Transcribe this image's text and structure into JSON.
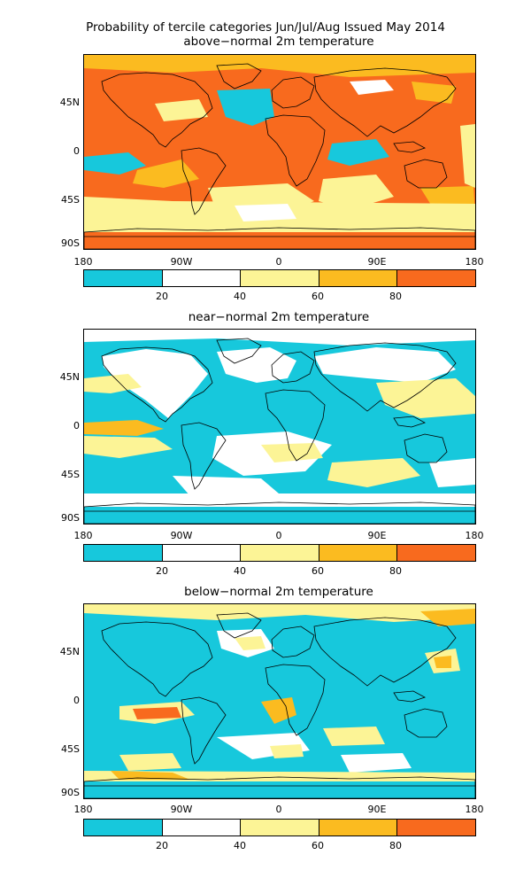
{
  "title_line1": "Probability of tercile categories Jun/Jul/Aug Issued May 2014",
  "colors": {
    "c0_20": "#17c8dc",
    "c20_40": "#ffffff",
    "c40_60": "#fcf496",
    "c60_80": "#fbbb20",
    "c80_100": "#f86a1e",
    "coast": "#000000"
  },
  "lat_labels": [
    "45N",
    "0",
    "45S",
    "90S"
  ],
  "lon_labels": [
    "180",
    "90W",
    "0",
    "90E",
    "180"
  ],
  "colorbar_labels": [
    "20",
    "40",
    "60",
    "80"
  ],
  "panels": [
    {
      "id": "above",
      "title": "above−normal 2m temperature"
    },
    {
      "id": "near",
      "title": "near−normal 2m temperature"
    },
    {
      "id": "below",
      "title": "below−normal 2m temperature"
    }
  ]
}
